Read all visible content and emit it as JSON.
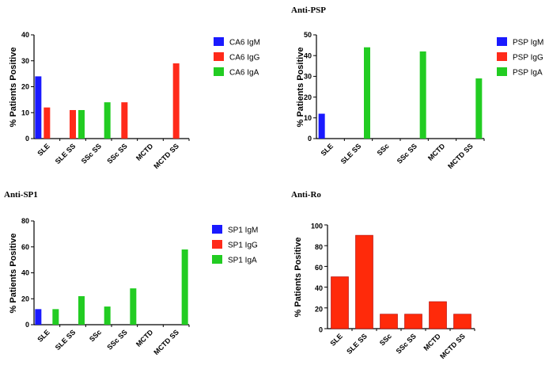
{
  "chart_data": [
    {
      "id": "ca6",
      "type": "bar",
      "title": "",
      "xlabel": "",
      "ylabel": "% Patients Positive",
      "ylim": [
        0,
        40
      ],
      "yticks": [
        0,
        10,
        20,
        30,
        40
      ],
      "categories": [
        "SLE",
        "SLE SS",
        "SSc SS",
        "SSc SS",
        "MCTD",
        "MCTD SS"
      ],
      "series": [
        {
          "name": "CA6 IgM",
          "color": "#1a1aff",
          "values": [
            24,
            0,
            0,
            0,
            0,
            0
          ]
        },
        {
          "name": "CA6 IgG",
          "color": "#ff2a1a",
          "values": [
            12,
            11,
            0,
            14,
            0,
            29
          ]
        },
        {
          "name": "CA6 IgA",
          "color": "#22cc22",
          "values": [
            0,
            11,
            14,
            0,
            0,
            0
          ]
        }
      ]
    },
    {
      "id": "psp",
      "type": "bar",
      "title": "Anti-PSP",
      "xlabel": "",
      "ylabel": "% Patients Positive",
      "ylim": [
        0,
        50
      ],
      "yticks": [
        0,
        10,
        20,
        30,
        40,
        50
      ],
      "categories": [
        "SLE",
        "SLE SS",
        "SSc",
        "SSc SS",
        "MCTD",
        "MCTD SS"
      ],
      "series": [
        {
          "name": "PSP IgM",
          "color": "#1a1aff",
          "values": [
            12,
            0,
            0,
            0,
            0,
            0
          ]
        },
        {
          "name": "PSP IgG",
          "color": "#ff2a1a",
          "values": [
            0,
            0,
            0,
            0,
            0,
            0
          ]
        },
        {
          "name": "PSP IgA",
          "color": "#22cc22",
          "values": [
            0,
            44,
            0,
            42,
            0,
            29
          ]
        }
      ]
    },
    {
      "id": "sp1",
      "type": "bar",
      "title": "Anti-SP1",
      "xlabel": "",
      "ylabel": "% Patients Positive",
      "ylim": [
        0,
        80
      ],
      "yticks": [
        0,
        20,
        40,
        60,
        80
      ],
      "categories": [
        "SLE",
        "SLE SS",
        "SSc",
        "SSc SS",
        "MCTD",
        "MCTD SS"
      ],
      "series": [
        {
          "name": "SP1 IgM",
          "color": "#1a1aff",
          "values": [
            12,
            0,
            0,
            0,
            0,
            0
          ]
        },
        {
          "name": "SP1 IgG",
          "color": "#ff2a1a",
          "values": [
            0,
            0,
            0,
            0,
            0,
            0
          ]
        },
        {
          "name": "SP1 IgA",
          "color": "#22cc22",
          "values": [
            12,
            22,
            14,
            28,
            0,
            58
          ]
        }
      ]
    },
    {
      "id": "ro",
      "type": "bar",
      "title": "Anti-Ro",
      "xlabel": "",
      "ylabel": "% Patients Positive",
      "ylim": [
        0,
        100
      ],
      "yticks": [
        0,
        20,
        40,
        60,
        80,
        100
      ],
      "categories": [
        "SLE",
        "SLE SS",
        "SSc",
        "SSc SS",
        "MCTD",
        "MCTD SS"
      ],
      "series": [
        {
          "name": "Anti-Ro",
          "color": "#ff2a0a",
          "values": [
            50,
            90,
            14,
            14,
            26,
            14
          ]
        }
      ]
    }
  ]
}
